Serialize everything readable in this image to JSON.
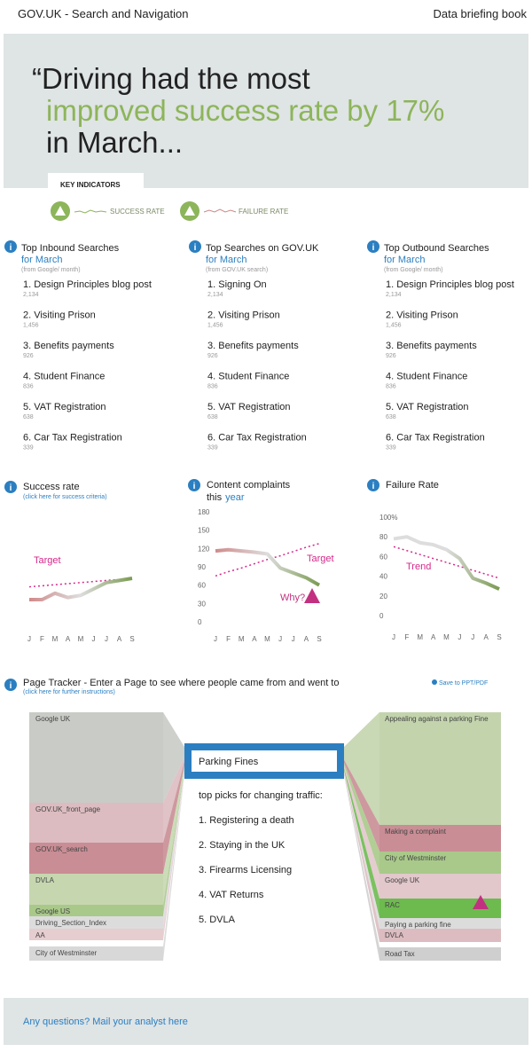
{
  "header": {
    "title": "GOV.UK - Search and Navigation",
    "right": "Data briefing book"
  },
  "hero": {
    "line1": "“Driving had the most",
    "line2": "improved success rate by 17%",
    "line3": "in March..."
  },
  "key_indicators": {
    "label": "KEY INDICATORS",
    "items": [
      "SUCCESS RATE",
      "FAILURE RATE"
    ]
  },
  "lists": [
    {
      "title": "Top Inbound Searches",
      "period": "for March",
      "source": "(from Google/ month)",
      "items": [
        {
          "name": "1. Design Principles blog post",
          "count": "2,134"
        },
        {
          "name": "2. Visiting Prison",
          "count": "1,456"
        },
        {
          "name": "3. Benefits payments",
          "count": "926"
        },
        {
          "name": "4. Student Finance",
          "count": "836"
        },
        {
          "name": "5. VAT Registration",
          "count": "638"
        },
        {
          "name": "6. Car Tax Registration",
          "count": "339"
        }
      ]
    },
    {
      "title": "Top Searches on GOV.UK",
      "period": "for March",
      "source": "(from GOV.UK search)",
      "items": [
        {
          "name": "1. Signing On",
          "count": "2,134"
        },
        {
          "name": "2. Visiting Prison",
          "count": "1,456"
        },
        {
          "name": "3. Benefits payments",
          "count": "926"
        },
        {
          "name": "4. Student Finance",
          "count": "836"
        },
        {
          "name": "5. VAT Registration",
          "count": "638"
        },
        {
          "name": "6. Car Tax Registration",
          "count": "339"
        }
      ]
    },
    {
      "title": "Top Outbound Searches",
      "period": "for March",
      "source": "(from Google/ month)",
      "items": [
        {
          "name": "1. Design Principles blog post",
          "count": "2,134"
        },
        {
          "name": "2. Visiting Prison",
          "count": "1,456"
        },
        {
          "name": "3. Benefits payments",
          "count": "926"
        },
        {
          "name": "4. Student Finance",
          "count": "836"
        },
        {
          "name": "5. VAT Registration",
          "count": "638"
        },
        {
          "name": "6. Car Tax Registration",
          "count": "339"
        }
      ]
    }
  ],
  "chart_data": [
    {
      "type": "line",
      "title": "Success rate",
      "subtitle": "(click here for success criteria)",
      "categories": [
        "J",
        "F",
        "M",
        "A",
        "M",
        "J",
        "J",
        "A",
        "S"
      ],
      "values": [
        20,
        20,
        26,
        22,
        24,
        30,
        36,
        38,
        40
      ],
      "target": {
        "label": "Target",
        "values": [
          32,
          33,
          34,
          35,
          36,
          37,
          38,
          39,
          40
        ]
      },
      "ylim": [
        0,
        100
      ],
      "line_colors": [
        "#d08a8a",
        "#dddddd",
        "#7b9b52"
      ],
      "target_color": "#d6288a"
    },
    {
      "type": "line",
      "title": "Content complaints",
      "subtitle": "this",
      "subtitle_link": "year",
      "categories": [
        "J",
        "F",
        "M",
        "A",
        "M",
        "J",
        "J",
        "A",
        "S"
      ],
      "values": [
        116,
        118,
        116,
        114,
        111,
        88,
        80,
        72,
        60
      ],
      "target": {
        "label": "Target",
        "values": [
          75,
          82,
          88,
          95,
          102,
          108,
          115,
          122,
          128
        ]
      },
      "annotation": "Why?",
      "ylim": [
        0,
        180
      ],
      "yticks": [
        0,
        30,
        60,
        90,
        120,
        150,
        180
      ],
      "line_colors": [
        "#d08a8a",
        "#dddddd",
        "#7b9b52"
      ],
      "target_color": "#d6288a"
    },
    {
      "type": "line",
      "title": "Failure Rate",
      "categories": [
        "J",
        "F",
        "M",
        "A",
        "M",
        "J",
        "J",
        "A",
        "S"
      ],
      "values": [
        78,
        80,
        74,
        72,
        67,
        58,
        38,
        33,
        27
      ],
      "target": {
        "label": "Trend",
        "values": [
          70,
          66,
          62,
          58,
          54,
          50,
          46,
          42,
          38
        ]
      },
      "ylim": [
        0,
        100
      ],
      "yticks": [
        0,
        20,
        40,
        60,
        80,
        {
          "value": 100,
          "label": "100%"
        }
      ],
      "line_colors": [
        "#dddddd",
        "#dddddd",
        "#7b9b52"
      ],
      "target_color": "#d6288a"
    }
  ],
  "tracker": {
    "title": "Page Tracker - Enter a Page to see  where people came from and went to",
    "subtitle": "(click here for further instructions)",
    "save": "Save to PPT/PDF",
    "page": "Parking Fines",
    "picks_title": "top picks for changing traffic:",
    "picks": [
      "1. Registering a death",
      "2. Staying in the UK",
      "3. Firearms Licensing",
      "4. VAT Returns",
      "5. DVLA"
    ],
    "sources": [
      "Google UK",
      "GOV.UK_front_page",
      "GOV.UK_search",
      "DVLA",
      "Google US",
      "Driving_Section_Index",
      "AA",
      "City of Westminster"
    ],
    "destinations": [
      "Appealing against a parking Fine",
      "Making a complaint",
      "City of Westminster",
      "Google UK",
      "RAC",
      "Paying a parking fine",
      "DVLA",
      "Road Tax"
    ]
  },
  "footer": "Any questions? Mail your analyst here"
}
